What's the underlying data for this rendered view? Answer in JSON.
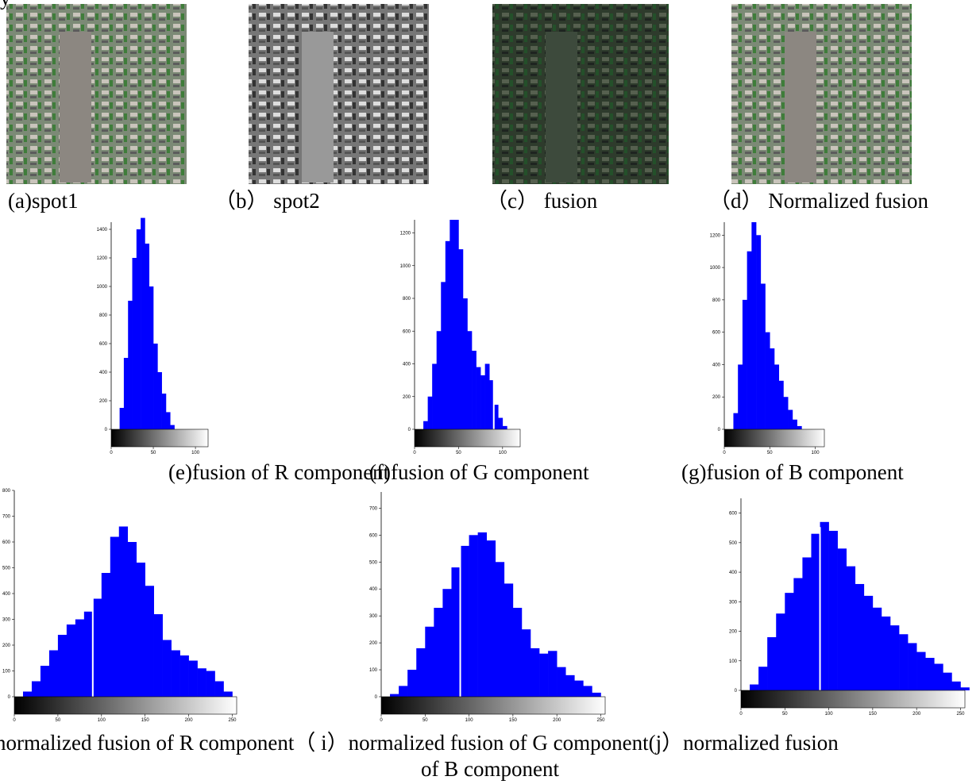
{
  "header_fragment": "y",
  "images": [
    {
      "caption": "(a)spot1"
    },
    {
      "caption": "（b） spot2"
    },
    {
      "caption": "（c） fusion"
    },
    {
      "caption": "（d） Normalized fusion"
    }
  ],
  "chart_data": [
    {
      "type": "histogram",
      "caption": "(e)fusion of R component",
      "color": "#0000ff",
      "bins": [
        0,
        5,
        10,
        15,
        20,
        25,
        30,
        35,
        40,
        45,
        50,
        55,
        60,
        65,
        70,
        75,
        80
      ],
      "counts": [
        0,
        0,
        150,
        500,
        900,
        1200,
        1400,
        1480,
        1300,
        1000,
        600,
        400,
        250,
        120,
        30,
        0
      ],
      "xlim": [
        0,
        115
      ],
      "xticks": [
        0,
        50,
        100
      ],
      "ylim": [
        0,
        1450
      ],
      "yticks": [
        0,
        200,
        400,
        600,
        800,
        1000,
        1200,
        1400
      ]
    },
    {
      "type": "histogram",
      "caption": "(f)fusion of G component",
      "color": "#0000ff",
      "bins": [
        0,
        5,
        10,
        15,
        20,
        25,
        30,
        35,
        40,
        45,
        50,
        55,
        60,
        65,
        70,
        75,
        80,
        85,
        90,
        95,
        100,
        105,
        110
      ],
      "counts": [
        0,
        0,
        50,
        200,
        400,
        600,
        900,
        1150,
        1280,
        1280,
        1100,
        800,
        600,
        480,
        380,
        330,
        400,
        300,
        150,
        70,
        20,
        0
      ],
      "xlim": [
        0,
        120
      ],
      "xticks": [
        0,
        50,
        100
      ],
      "ylim": [
        0,
        1280
      ],
      "yticks": [
        0,
        200,
        400,
        600,
        800,
        1000,
        1200
      ],
      "marker_x": 90
    },
    {
      "type": "histogram",
      "caption": "(g)fusion of B component",
      "color": "#0000ff",
      "bins": [
        0,
        5,
        10,
        15,
        20,
        25,
        30,
        35,
        40,
        45,
        50,
        55,
        60,
        65,
        70,
        75,
        80,
        85,
        90
      ],
      "counts": [
        0,
        0,
        100,
        400,
        800,
        1100,
        1280,
        1200,
        900,
        600,
        500,
        400,
        300,
        200,
        120,
        60,
        20,
        0
      ],
      "xlim": [
        0,
        110
      ],
      "xticks": [
        0,
        50,
        100
      ],
      "ylim": [
        0,
        1280
      ],
      "yticks": [
        0,
        200,
        400,
        600,
        800,
        1000,
        1200
      ]
    },
    {
      "type": "histogram",
      "caption": "normalized fusion of R component",
      "color": "#0000ff",
      "bins": [
        0,
        10,
        20,
        30,
        40,
        50,
        60,
        70,
        80,
        90,
        100,
        110,
        120,
        130,
        140,
        150,
        160,
        170,
        180,
        190,
        200,
        210,
        220,
        230,
        240,
        250,
        260
      ],
      "counts": [
        0,
        20,
        60,
        120,
        180,
        240,
        280,
        300,
        330,
        380,
        480,
        620,
        660,
        600,
        520,
        430,
        320,
        220,
        180,
        160,
        140,
        110,
        100,
        60,
        20,
        0
      ],
      "xlim": [
        0,
        255
      ],
      "xticks": [
        0,
        50,
        100,
        150,
        200,
        250
      ],
      "ylim": [
        0,
        800
      ],
      "yticks": [
        0,
        100,
        200,
        300,
        400,
        500,
        600,
        700,
        800
      ],
      "marker_x": 90
    },
    {
      "type": "histogram",
      "caption": "（ i）normalized fusion of G component",
      "color": "#0000ff",
      "bins": [
        0,
        10,
        20,
        30,
        40,
        50,
        60,
        70,
        80,
        90,
        100,
        110,
        120,
        130,
        140,
        150,
        160,
        170,
        180,
        190,
        200,
        210,
        220,
        230,
        240,
        250,
        260
      ],
      "counts": [
        0,
        10,
        40,
        100,
        180,
        260,
        330,
        400,
        480,
        560,
        600,
        610,
        580,
        500,
        420,
        330,
        250,
        180,
        160,
        170,
        110,
        80,
        60,
        40,
        15,
        0
      ],
      "xlim": [
        0,
        255
      ],
      "xticks": [
        0,
        50,
        100,
        150,
        200,
        250
      ],
      "ylim": [
        0,
        760
      ],
      "yticks": [
        0,
        100,
        200,
        300,
        400,
        500,
        600,
        700
      ],
      "marker_x": 90
    },
    {
      "type": "histogram",
      "caption_lines": [
        "(j）normalized fusion",
        "of B component"
      ],
      "color": "#0000ff",
      "bins": [
        0,
        10,
        20,
        30,
        40,
        50,
        60,
        70,
        80,
        90,
        100,
        110,
        120,
        130,
        140,
        150,
        160,
        170,
        180,
        190,
        200,
        210,
        220,
        230,
        240,
        250,
        260
      ],
      "counts": [
        0,
        20,
        80,
        180,
        260,
        330,
        380,
        450,
        530,
        570,
        540,
        480,
        420,
        360,
        320,
        280,
        250,
        220,
        190,
        160,
        130,
        110,
        90,
        60,
        30,
        10
      ],
      "xlim": [
        0,
        255
      ],
      "xticks": [
        0,
        50,
        100,
        150,
        200,
        250
      ],
      "ylim": [
        0,
        650
      ],
      "yticks": [
        0,
        100,
        200,
        300,
        400,
        500,
        600
      ],
      "marker_x": 90
    }
  ]
}
